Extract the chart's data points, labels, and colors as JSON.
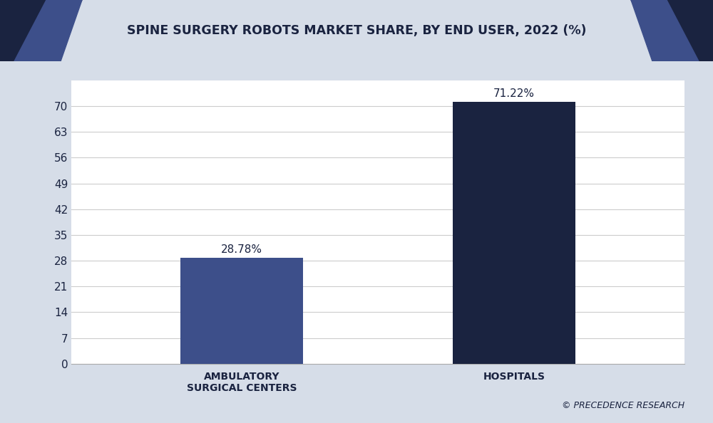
{
  "title": "SPINE SURGERY ROBOTS MARKET SHARE, BY END USER, 2022 (%)",
  "categories": [
    "AMBULATORY\nSURGICAL CENTERS",
    "HOSPITALS"
  ],
  "values": [
    28.78,
    71.22
  ],
  "labels": [
    "28.78%",
    "71.22%"
  ],
  "bar_colors": [
    "#3d4f8a",
    "#1a2340"
  ],
  "background_color": "#ffffff",
  "plot_bg_color": "#ffffff",
  "title_color": "#1a2340",
  "title_fontsize": 12.5,
  "yticks": [
    0,
    7,
    14,
    21,
    28,
    35,
    42,
    49,
    56,
    63,
    70
  ],
  "ylim": [
    0,
    77
  ],
  "bar_width": 0.18,
  "xlabel_color": "#1a2340",
  "watermark": "© PRECEDENCE RESEARCH",
  "grid_color": "#cccccc",
  "outer_bg_color": "#d6dde8",
  "title_band_color": "#ffffff",
  "dark_color": "#1a2340",
  "mid_color": "#3d4f8a"
}
